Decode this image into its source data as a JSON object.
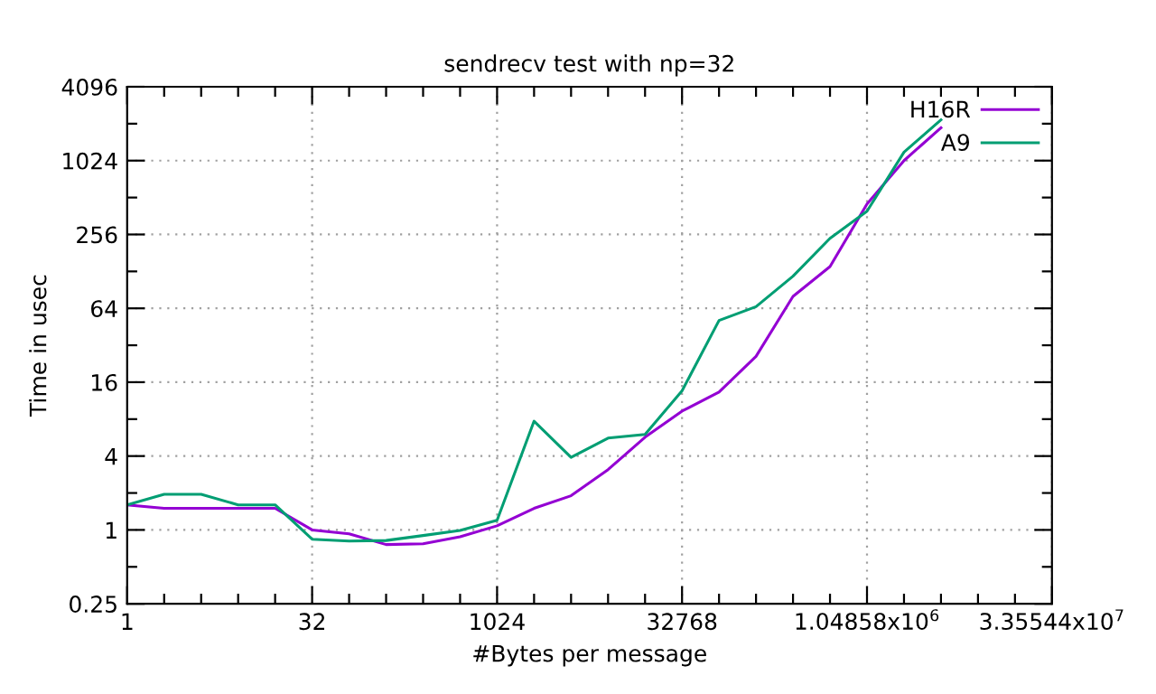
{
  "chart_data": {
    "type": "line",
    "title": "sendrecv test with np=32",
    "xlabel": "#Bytes per message",
    "ylabel": "Time in usec",
    "log": "xy",
    "grid": true,
    "legend": "top right",
    "marker": "none",
    "line_style": "solid",
    "x": [
      1,
      2,
      4,
      8,
      16,
      32,
      64,
      128,
      256,
      512,
      1024,
      2048,
      4096,
      8192,
      16384,
      32768,
      65536,
      131072,
      262144,
      524288,
      1048576,
      2097152,
      4194304
    ],
    "series": [
      {
        "name": "H16R",
        "color": "#9400d3",
        "values": [
          1.6,
          1.5,
          1.5,
          1.5,
          1.5,
          1.0,
          0.93,
          0.76,
          0.77,
          0.88,
          1.08,
          1.5,
          1.9,
          3.1,
          5.7,
          9.3,
          13.3,
          26,
          80,
          140,
          454,
          1024,
          1900
        ]
      },
      {
        "name": "A9",
        "color": "#009e73",
        "values": [
          1.6,
          1.95,
          1.95,
          1.6,
          1.6,
          0.84,
          0.81,
          0.82,
          0.9,
          0.99,
          1.2,
          7.7,
          3.9,
          5.6,
          6.0,
          13.6,
          51,
          66,
          117,
          238,
          396,
          1200,
          2200
        ]
      }
    ],
    "xlim": [
      1,
      33554432
    ],
    "xticks": [
      1,
      {
        "value": 2,
        "label": null
      },
      {
        "value": 4,
        "label": null
      },
      {
        "value": 8,
        "label": null
      },
      {
        "value": 16,
        "label": null
      },
      32,
      {
        "value": 64,
        "label": null
      },
      {
        "value": 128,
        "label": null
      },
      {
        "value": 256,
        "label": null
      },
      {
        "value": 512,
        "label": null
      },
      1024,
      {
        "value": 2048,
        "label": null
      },
      {
        "value": 4096,
        "label": null
      },
      {
        "value": 8192,
        "label": null
      },
      {
        "value": 16384,
        "label": null
      },
      32768,
      {
        "value": 65536,
        "label": null
      },
      {
        "value": 131072,
        "label": null
      },
      {
        "value": 262144,
        "label": null
      },
      {
        "value": 524288,
        "label": null
      },
      {
        "value": 1048576,
        "label": "1.04858x10$^{6}$"
      },
      {
        "value": 2097152,
        "label": null
      },
      {
        "value": 4194304,
        "label": null
      },
      {
        "value": 8388608,
        "label": null
      },
      {
        "value": 16777216,
        "label": null
      },
      {
        "value": 33554432,
        "label": "3.35544x10$^{7}$"
      }
    ],
    "ylim": [
      0.25,
      4096
    ],
    "yticks": [
      0.25,
      {
        "value": 0.5,
        "label": null
      },
      1,
      {
        "value": 2,
        "label": null
      },
      4,
      {
        "value": 8,
        "label": null
      },
      16,
      {
        "value": 32,
        "label": null
      },
      64,
      {
        "value": 128,
        "label": null
      },
      256,
      {
        "value": 512,
        "label": null
      },
      1024,
      {
        "value": 2048,
        "label": null
      },
      4096
    ]
  }
}
